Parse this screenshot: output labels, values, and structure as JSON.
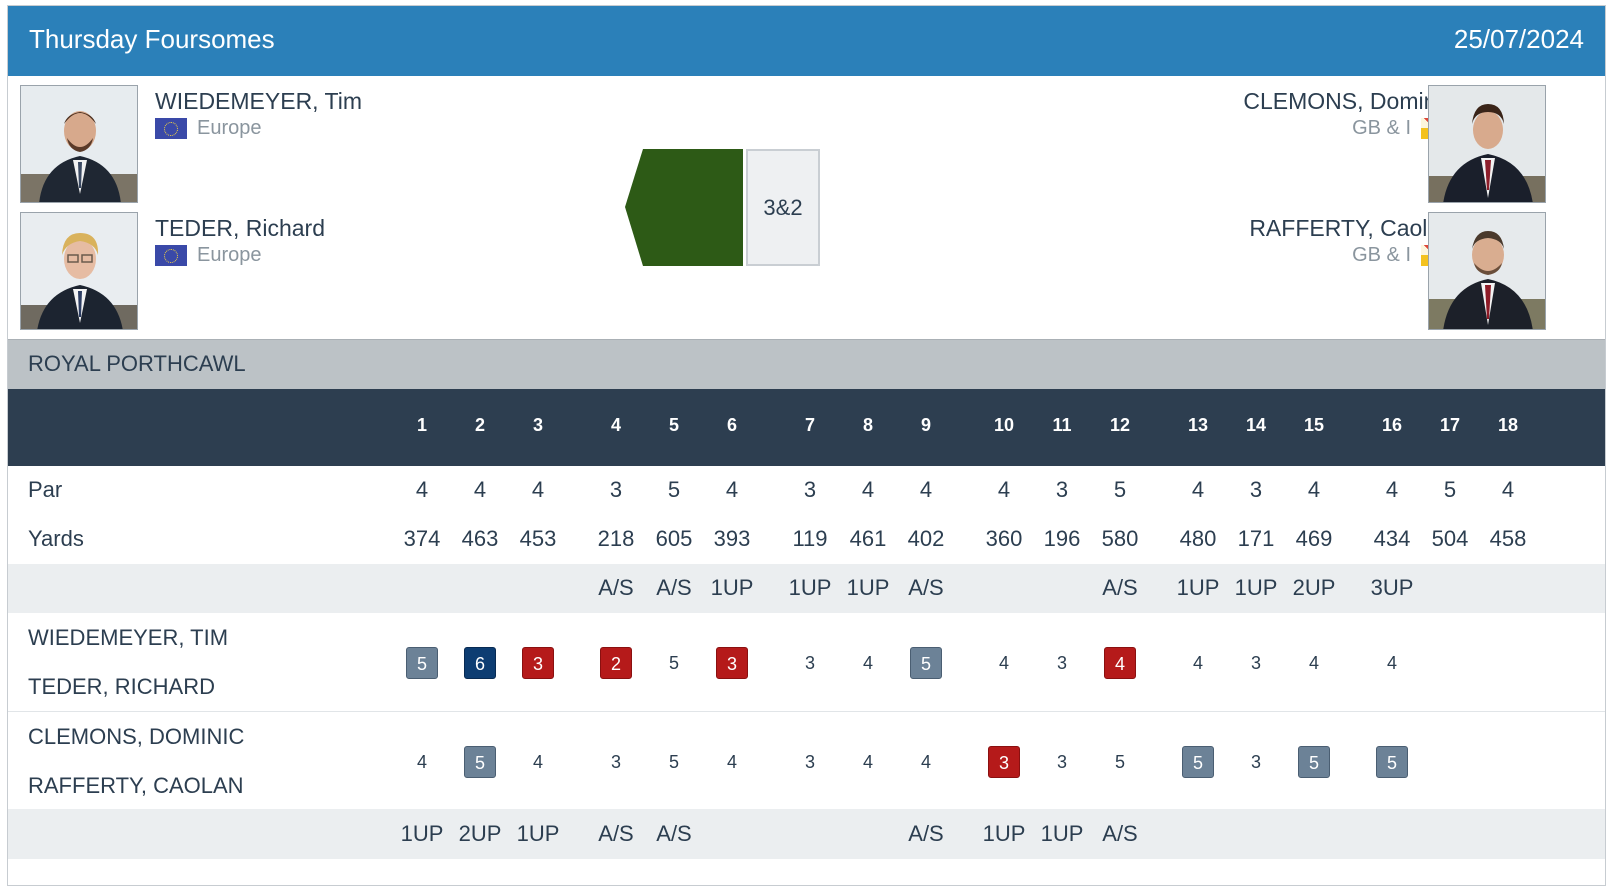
{
  "header": {
    "event": "Thursday Foursomes",
    "date": "25/07/2024"
  },
  "players": {
    "left": [
      {
        "name": "WIEDEMEYER, Tim",
        "team": "Europe"
      },
      {
        "name": "TEDER, Richard",
        "team": "Europe"
      }
    ],
    "right": [
      {
        "name": "CLEMONS, Dominic",
        "team": "GB & I"
      },
      {
        "name": "RAFFERTY, Caolan",
        "team": "GB & I"
      }
    ]
  },
  "result": {
    "text": "3&2",
    "winner_color": "#2d5a16"
  },
  "course": "ROYAL PORTHCAWL",
  "holes": [
    "1",
    "2",
    "3",
    "4",
    "5",
    "6",
    "7",
    "8",
    "9",
    "10",
    "11",
    "12",
    "13",
    "14",
    "15",
    "16",
    "17",
    "18"
  ],
  "par_label": "Par",
  "par": [
    "4",
    "4",
    "4",
    "3",
    "5",
    "4",
    "3",
    "4",
    "4",
    "4",
    "3",
    "5",
    "4",
    "3",
    "4",
    "4",
    "5",
    "4"
  ],
  "yards_label": "Yards",
  "yards": [
    "374",
    "463",
    "453",
    "218",
    "605",
    "393",
    "119",
    "461",
    "402",
    "360",
    "196",
    "580",
    "480",
    "171",
    "469",
    "434",
    "504",
    "458"
  ],
  "top_status": [
    "",
    "",
    "",
    "A/S",
    "A/S",
    "1UP",
    "1UP",
    "1UP",
    "A/S",
    "",
    "",
    "A/S",
    "1UP",
    "1UP",
    "2UP",
    "3UP",
    "",
    ""
  ],
  "team1": {
    "names": [
      "WIEDEMEYER, TIM",
      "TEDER, RICHARD"
    ],
    "scores": [
      "5",
      "6",
      "3",
      "2",
      "5",
      "3",
      "3",
      "4",
      "5",
      "4",
      "3",
      "4",
      "4",
      "3",
      "4",
      "4",
      "",
      ""
    ],
    "styles": [
      "bogey",
      "double",
      "birdie",
      "birdie",
      "",
      "birdie",
      "",
      "",
      "bogey",
      "",
      "",
      "birdie",
      "",
      "",
      "",
      "",
      "",
      ""
    ]
  },
  "team2": {
    "names": [
      "CLEMONS, DOMINIC",
      "RAFFERTY, CAOLAN"
    ],
    "scores": [
      "4",
      "5",
      "4",
      "3",
      "5",
      "4",
      "3",
      "4",
      "4",
      "3",
      "3",
      "5",
      "5",
      "3",
      "5",
      "5",
      "",
      ""
    ],
    "styles": [
      "",
      "bogey",
      "",
      "",
      "",
      "",
      "",
      "",
      "",
      "birdie",
      "",
      "",
      "bogey",
      "",
      "bogey",
      "bogey",
      "",
      ""
    ]
  },
  "bottom_status": [
    "1UP",
    "2UP",
    "1UP",
    "A/S",
    "A/S",
    "",
    "",
    "",
    "A/S",
    "1UP",
    "1UP",
    "A/S",
    "",
    "",
    "",
    "",
    "",
    ""
  ],
  "colors": {
    "header": "#2b80b9",
    "table_head": "#2d3e50",
    "course_bar": "#bcc2c6",
    "bogey": "#6c8297",
    "double": "#0d3d72",
    "birdie": "#b51a1a"
  }
}
